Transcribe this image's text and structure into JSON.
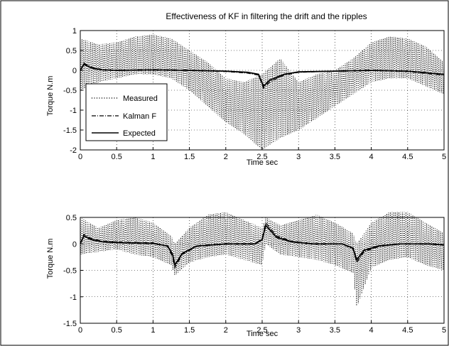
{
  "chart_data": [
    {
      "type": "line",
      "title": "Effectiveness of KF in filtering the drift and the ripples",
      "xlabel": "Time sec",
      "ylabel": "Torque N.m",
      "xlim": [
        0,
        5
      ],
      "ylim": [
        -2,
        1
      ],
      "xticks": [
        "0",
        "0.5",
        "1",
        "1.5",
        "2",
        "2.5",
        "3",
        "3.5",
        "4",
        "4.5",
        "5"
      ],
      "yticks": [
        "1",
        "0.5",
        "0",
        "-0.5",
        "-1",
        "-1.5",
        "-2"
      ],
      "grid": true,
      "legend": {
        "position": "middle-left",
        "entries": [
          "Measured",
          "Kalman F",
          "Expected"
        ]
      },
      "series": [
        {
          "name": "Measured",
          "style": "dotted",
          "x": [
            0,
            0.25,
            0.5,
            0.75,
            1.0,
            1.25,
            1.5,
            1.75,
            2.0,
            2.25,
            2.5,
            2.75,
            3.0,
            3.25,
            3.5,
            3.75,
            4.0,
            4.25,
            4.5,
            4.75,
            5.0
          ],
          "upper": [
            0.8,
            0.65,
            0.7,
            0.85,
            0.9,
            0.8,
            0.5,
            0.2,
            -0.2,
            -0.3,
            -0.1,
            0.3,
            -0.3,
            -0.1,
            0.0,
            0.3,
            0.7,
            0.85,
            0.8,
            0.6,
            0.2
          ],
          "lower": [
            -0.5,
            -0.3,
            -0.2,
            -0.1,
            -0.1,
            -0.2,
            -0.5,
            -0.9,
            -1.3,
            -1.6,
            -2.0,
            -1.7,
            -1.5,
            -1.2,
            -0.9,
            -0.6,
            -0.3,
            -0.2,
            -0.2,
            -0.4,
            -0.6
          ]
        },
        {
          "name": "Kalman F",
          "style": "dash-dot",
          "x": [
            0,
            0.05,
            0.15,
            0.3,
            0.5,
            1.0,
            1.5,
            2.0,
            2.3,
            2.45,
            2.52,
            2.6,
            2.8,
            3.0,
            3.5,
            4.0,
            4.5,
            5.0
          ],
          "y": [
            0.0,
            0.18,
            0.08,
            0.02,
            0.0,
            0.02,
            0.0,
            -0.03,
            -0.07,
            -0.12,
            -0.45,
            -0.3,
            -0.12,
            -0.05,
            -0.02,
            0.0,
            -0.03,
            -0.12
          ]
        },
        {
          "name": "Expected",
          "style": "solid",
          "x": [
            0,
            0.05,
            0.15,
            0.3,
            0.5,
            1.0,
            1.5,
            2.0,
            2.3,
            2.45,
            2.52,
            2.6,
            2.8,
            3.0,
            3.5,
            4.0,
            4.5,
            5.0
          ],
          "y": [
            0.0,
            0.15,
            0.06,
            0.01,
            0.0,
            0.01,
            0.0,
            -0.02,
            -0.05,
            -0.1,
            -0.4,
            -0.25,
            -0.1,
            -0.04,
            -0.02,
            0.0,
            -0.02,
            -0.1
          ]
        }
      ]
    },
    {
      "type": "line",
      "title": "",
      "xlabel": "Time sec",
      "ylabel": "Torque N.m",
      "xlim": [
        0,
        5
      ],
      "ylim": [
        -1.5,
        0.5
      ],
      "xticks": [
        "0",
        "0.5",
        "1",
        "1.5",
        "2",
        "2.5",
        "3",
        "3.5",
        "4",
        "4.5",
        "5"
      ],
      "yticks": [
        "0.5",
        "0",
        "-0.5",
        "-1",
        "-1.5"
      ],
      "grid": true,
      "series": [
        {
          "name": "Measured",
          "style": "dotted",
          "x": [
            0,
            0.25,
            0.5,
            0.75,
            1.0,
            1.25,
            1.3,
            1.5,
            1.75,
            2.0,
            2.25,
            2.5,
            2.55,
            2.75,
            3.0,
            3.25,
            3.5,
            3.75,
            3.8,
            4.0,
            4.25,
            4.5,
            4.75,
            5.0
          ],
          "upper": [
            0.5,
            0.3,
            0.45,
            0.5,
            0.4,
            0.15,
            0.0,
            0.3,
            0.55,
            0.6,
            0.45,
            0.3,
            0.5,
            0.35,
            0.45,
            0.55,
            0.4,
            0.2,
            0.0,
            0.4,
            0.6,
            0.6,
            0.4,
            0.2
          ],
          "lower": [
            -0.2,
            -0.15,
            -0.1,
            -0.2,
            -0.25,
            -0.4,
            -0.6,
            -0.35,
            -0.25,
            -0.2,
            -0.3,
            -0.4,
            0.0,
            -0.2,
            -0.25,
            -0.3,
            -0.4,
            -0.55,
            -1.2,
            -0.45,
            -0.3,
            -0.25,
            -0.4,
            -0.5
          ]
        },
        {
          "name": "Kalman F",
          "style": "dash-dot",
          "x": [
            0,
            0.05,
            0.15,
            0.3,
            0.6,
            1.0,
            1.2,
            1.27,
            1.3,
            1.4,
            1.6,
            2.0,
            2.4,
            2.5,
            2.55,
            2.7,
            2.9,
            3.2,
            3.6,
            3.75,
            3.8,
            3.9,
            4.1,
            4.4,
            4.8,
            5.0
          ],
          "y": [
            0.0,
            0.18,
            0.1,
            0.05,
            0.03,
            0.02,
            -0.05,
            -0.25,
            -0.45,
            -0.2,
            -0.05,
            0.0,
            0.0,
            0.1,
            0.4,
            0.15,
            0.05,
            0.0,
            0.0,
            -0.1,
            -0.35,
            -0.15,
            -0.05,
            0.0,
            0.0,
            -0.02
          ]
        },
        {
          "name": "Expected",
          "style": "solid",
          "x": [
            0,
            0.05,
            0.15,
            0.3,
            0.6,
            1.0,
            1.2,
            1.27,
            1.3,
            1.4,
            1.6,
            2.0,
            2.4,
            2.5,
            2.55,
            2.7,
            2.9,
            3.2,
            3.6,
            3.75,
            3.8,
            3.9,
            4.1,
            4.4,
            4.8,
            5.0
          ],
          "y": [
            0.0,
            0.15,
            0.08,
            0.04,
            0.02,
            0.01,
            -0.04,
            -0.2,
            -0.4,
            -0.18,
            -0.04,
            0.0,
            0.0,
            0.08,
            0.35,
            0.12,
            0.04,
            0.0,
            0.0,
            -0.08,
            -0.3,
            -0.12,
            -0.04,
            0.0,
            0.0,
            -0.02
          ]
        }
      ]
    }
  ]
}
